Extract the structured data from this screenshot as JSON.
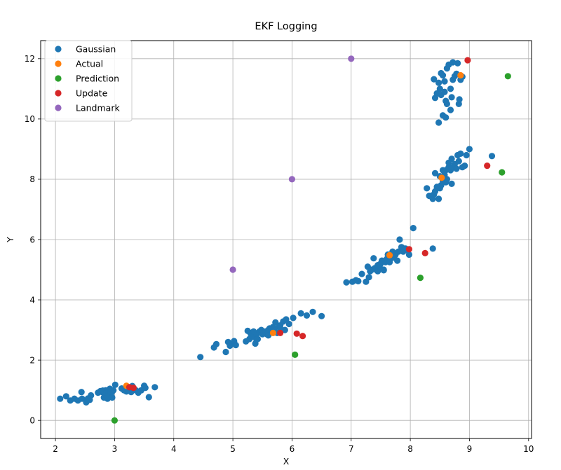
{
  "chart_data": {
    "type": "scatter",
    "title": "EKF Logging",
    "xlabel": "X",
    "ylabel": "Y",
    "xlim": [
      1.75,
      10.05
    ],
    "ylim": [
      -0.6,
      12.6
    ],
    "xticks": [
      2,
      3,
      4,
      5,
      6,
      7,
      8,
      9,
      10
    ],
    "yticks": [
      0,
      2,
      4,
      6,
      8,
      10,
      12
    ],
    "grid": true,
    "legend_position": "top-left",
    "series": [
      {
        "name": "Gaussian",
        "color": "#1f77b4",
        "x": [
          2.08,
          2.18,
          2.25,
          2.32,
          2.38,
          2.45,
          2.44,
          2.52,
          2.55,
          2.58,
          2.6,
          2.72,
          2.76,
          2.8,
          2.82,
          2.85,
          2.88,
          2.9,
          2.92,
          2.95,
          2.98,
          2.79,
          2.84,
          2.88,
          2.93,
          2.96,
          3.01,
          3.12,
          3.16,
          3.2,
          3.24,
          3.28,
          3.32,
          3.36,
          3.4,
          3.45,
          3.5,
          3.52,
          3.58,
          3.68,
          3.3,
          3.22,
          4.45,
          4.68,
          4.72,
          4.88,
          4.92,
          4.95,
          5.0,
          5.02,
          5.05,
          5.22,
          5.25,
          5.28,
          5.3,
          5.32,
          5.35,
          5.38,
          5.4,
          5.42,
          5.45,
          5.48,
          5.5,
          5.52,
          5.55,
          5.58,
          5.6,
          5.62,
          5.65,
          5.68,
          5.7,
          5.72,
          5.75,
          5.78,
          5.8,
          5.85,
          5.88,
          5.9,
          5.95,
          6.02,
          6.15,
          6.25,
          6.35,
          6.5,
          5.4,
          5.6,
          5.8,
          6.92,
          7.02,
          7.08,
          7.12,
          7.18,
          7.25,
          7.28,
          7.3,
          7.32,
          7.35,
          7.38,
          7.4,
          7.42,
          7.45,
          7.48,
          7.5,
          7.52,
          7.55,
          7.58,
          7.6,
          7.62,
          7.65,
          7.68,
          7.7,
          7.72,
          7.75,
          7.78,
          7.8,
          7.82,
          7.85,
          7.88,
          7.9,
          7.92,
          7.95,
          7.98,
          8.05,
          8.38,
          7.45,
          7.55,
          7.65,
          8.28,
          8.32,
          8.35,
          8.38,
          8.4,
          8.42,
          8.45,
          8.48,
          8.5,
          8.52,
          8.55,
          8.58,
          8.6,
          8.62,
          8.65,
          8.68,
          8.7,
          8.72,
          8.75,
          8.78,
          8.8,
          8.82,
          8.85,
          8.88,
          8.92,
          8.95,
          9.0,
          9.38,
          8.42,
          8.5,
          8.6,
          8.7,
          8.55,
          8.65,
          8.4,
          8.42,
          8.45,
          8.48,
          8.5,
          8.52,
          8.55,
          8.58,
          8.6,
          8.62,
          8.65,
          8.68,
          8.7,
          8.72,
          8.75,
          8.78,
          8.8,
          8.82,
          8.85,
          8.88,
          8.48,
          8.55,
          8.6,
          8.52,
          8.58,
          8.62,
          8.68,
          8.72,
          8.83
        ],
        "y": [
          0.72,
          0.8,
          0.66,
          0.72,
          0.66,
          0.72,
          0.94,
          0.6,
          0.73,
          0.68,
          0.83,
          0.92,
          0.97,
          0.99,
          0.76,
          1.0,
          0.72,
          0.78,
          1.05,
          0.92,
          1.0,
          0.94,
          0.88,
          0.81,
          0.95,
          0.76,
          1.18,
          1.06,
          1.0,
          0.96,
          1.1,
          0.94,
          1.08,
          1.0,
          0.92,
          1.0,
          1.15,
          1.08,
          0.77,
          1.1,
          1.14,
          1.05,
          2.1,
          2.42,
          2.53,
          2.27,
          2.6,
          2.48,
          2.55,
          2.63,
          2.5,
          2.62,
          2.97,
          2.7,
          2.88,
          2.77,
          2.95,
          2.55,
          2.85,
          2.7,
          2.95,
          3.0,
          2.86,
          2.92,
          2.95,
          2.85,
          3.0,
          3.05,
          2.92,
          3.1,
          2.98,
          3.25,
          2.9,
          3.1,
          3.15,
          3.28,
          3.0,
          3.35,
          3.2,
          3.4,
          3.55,
          3.48,
          3.6,
          3.46,
          2.68,
          2.82,
          3.05,
          4.58,
          4.6,
          4.65,
          4.62,
          4.86,
          4.6,
          5.1,
          4.75,
          4.95,
          5.0,
          5.38,
          5.05,
          5.0,
          4.95,
          5.1,
          5.2,
          5.3,
          5.0,
          5.25,
          5.35,
          5.5,
          5.3,
          5.45,
          5.6,
          5.4,
          5.5,
          5.3,
          5.6,
          6.0,
          5.75,
          5.6,
          5.7,
          5.7,
          5.65,
          5.5,
          6.38,
          5.7,
          5.15,
          4.98,
          5.25,
          7.7,
          7.45,
          7.45,
          7.35,
          7.5,
          7.6,
          7.75,
          7.35,
          7.7,
          7.8,
          7.95,
          8.15,
          8.3,
          8.0,
          8.4,
          8.3,
          8.68,
          8.4,
          8.5,
          8.35,
          8.8,
          8.6,
          8.85,
          8.4,
          8.45,
          8.8,
          9.0,
          8.77,
          8.2,
          8.1,
          7.9,
          7.85,
          8.3,
          8.55,
          11.32,
          10.7,
          10.85,
          11.2,
          11.0,
          10.8,
          11.45,
          10.9,
          10.6,
          10.5,
          11.8,
          11.0,
          10.72,
          11.3,
          11.42,
          11.5,
          11.85,
          10.5,
          11.3,
          11.4,
          9.88,
          10.12,
          10.05,
          11.52,
          11.25,
          11.68,
          10.3,
          11.88,
          10.65
        ]
      },
      {
        "name": "Actual",
        "color": "#ff7f0e",
        "x": [
          3.2,
          5.68,
          7.65,
          8.53,
          8.85
        ],
        "y": [
          1.15,
          2.9,
          5.48,
          8.05,
          11.45
        ]
      },
      {
        "name": "Prediction",
        "color": "#2ca02c",
        "x": [
          3.0,
          6.05,
          8.17,
          9.55,
          9.65
        ],
        "y": [
          0.0,
          2.18,
          4.73,
          8.23,
          11.42
        ]
      },
      {
        "name": "Update",
        "color": "#d62728",
        "x": [
          3.25,
          3.32,
          5.8,
          6.08,
          6.18,
          7.98,
          8.25,
          9.3,
          8.97
        ],
        "y": [
          1.1,
          1.08,
          2.9,
          2.88,
          2.8,
          5.68,
          5.55,
          8.45,
          11.95
        ]
      },
      {
        "name": "Landmark",
        "color": "#9467bd",
        "x": [
          5.0,
          6.0,
          7.0
        ],
        "y": [
          5.0,
          8.0,
          12.0
        ]
      }
    ]
  }
}
